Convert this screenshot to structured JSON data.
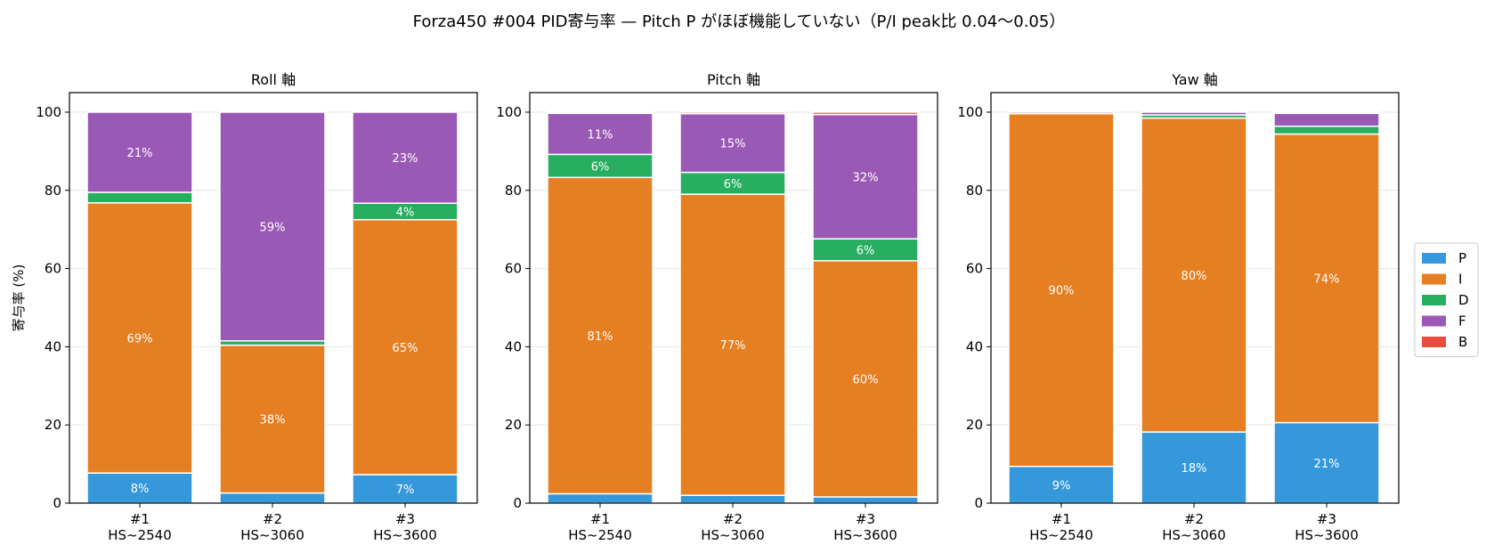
{
  "suptitle": "Forza450 #004 PID寄与率 — Pitch P がほぼ機能していない（P/I peak比 0.04〜0.05）",
  "colors": {
    "P": "#3498db",
    "I": "#e67e22",
    "D": "#27ae60",
    "F": "#9b59b6",
    "B": "#e74c3c"
  },
  "legend": {
    "placement": "right",
    "entries": [
      "P",
      "I",
      "D",
      "F",
      "B"
    ]
  },
  "chart_data": [
    {
      "type": "bar",
      "stacked": true,
      "title": "Roll 軸",
      "ylabel": "寄与率 (%)",
      "xlabel": "",
      "ylim": [
        0,
        105
      ],
      "yticks": [
        "0",
        "20",
        "40",
        "60",
        "80",
        "100"
      ],
      "categories": [
        "#1\nHS~2540",
        "#2\nHS~3060",
        "#3\nHS~3600"
      ],
      "grid": "y",
      "series": [
        {
          "name": "P",
          "values": [
            7.7,
            2.6,
            7.3
          ],
          "labels": [
            "8%",
            "",
            "7%"
          ]
        },
        {
          "name": "I",
          "values": [
            69.1,
            37.8,
            65.2
          ],
          "labels": [
            "69%",
            "38%",
            "65%"
          ]
        },
        {
          "name": "D",
          "values": [
            2.7,
            1.1,
            4.2
          ],
          "labels": [
            "",
            "",
            "4%"
          ]
        },
        {
          "name": "F",
          "values": [
            20.5,
            58.5,
            23.3
          ],
          "labels": [
            "21%",
            "59%",
            "23%"
          ]
        },
        {
          "name": "B",
          "values": [
            0,
            0,
            0
          ],
          "labels": [
            "",
            "",
            ""
          ]
        }
      ]
    },
    {
      "type": "bar",
      "stacked": true,
      "title": "Pitch 軸",
      "ylabel": "",
      "xlabel": "",
      "ylim": [
        0,
        105
      ],
      "yticks": [
        "0",
        "20",
        "40",
        "60",
        "80",
        "100"
      ],
      "categories": [
        "#1\nHS~2540",
        "#2\nHS~3060",
        "#3\nHS~3600"
      ],
      "grid": "y",
      "series": [
        {
          "name": "P",
          "values": [
            2.4,
            2.0,
            1.6
          ],
          "labels": [
            "",
            "",
            ""
          ]
        },
        {
          "name": "I",
          "values": [
            80.9,
            77.0,
            60.4
          ],
          "labels": [
            "81%",
            "77%",
            "60%"
          ]
        },
        {
          "name": "D",
          "values": [
            5.9,
            5.6,
            5.6
          ],
          "labels": [
            "6%",
            "6%",
            "6%"
          ]
        },
        {
          "name": "F",
          "values": [
            10.5,
            15.0,
            31.8
          ],
          "labels": [
            "11%",
            "15%",
            "32%"
          ]
        },
        {
          "name": "B",
          "values": [
            0.3,
            0.4,
            0.6
          ],
          "labels": [
            "",
            "",
            ""
          ]
        }
      ]
    },
    {
      "type": "bar",
      "stacked": true,
      "title": "Yaw 軸",
      "ylabel": "",
      "xlabel": "",
      "ylim": [
        0,
        105
      ],
      "yticks": [
        "0",
        "20",
        "40",
        "60",
        "80",
        "100"
      ],
      "categories": [
        "#1\nHS~2540",
        "#2\nHS~3060",
        "#3\nHS~3600"
      ],
      "grid": "y",
      "series": [
        {
          "name": "P",
          "values": [
            9.4,
            18.2,
            20.6
          ],
          "labels": [
            "9%",
            "18%",
            "21%"
          ]
        },
        {
          "name": "I",
          "values": [
            90.2,
            80.3,
            73.8
          ],
          "labels": [
            "90%",
            "80%",
            "74%"
          ]
        },
        {
          "name": "D",
          "values": [
            0.0,
            0.8,
            2.0
          ],
          "labels": [
            "",
            "",
            ""
          ]
        },
        {
          "name": "F",
          "values": [
            0.0,
            0.7,
            3.3
          ],
          "labels": [
            "",
            "",
            ""
          ]
        },
        {
          "name": "B",
          "values": [
            0.4,
            0.0,
            0.3
          ],
          "labels": [
            "",
            "",
            ""
          ]
        }
      ]
    }
  ]
}
